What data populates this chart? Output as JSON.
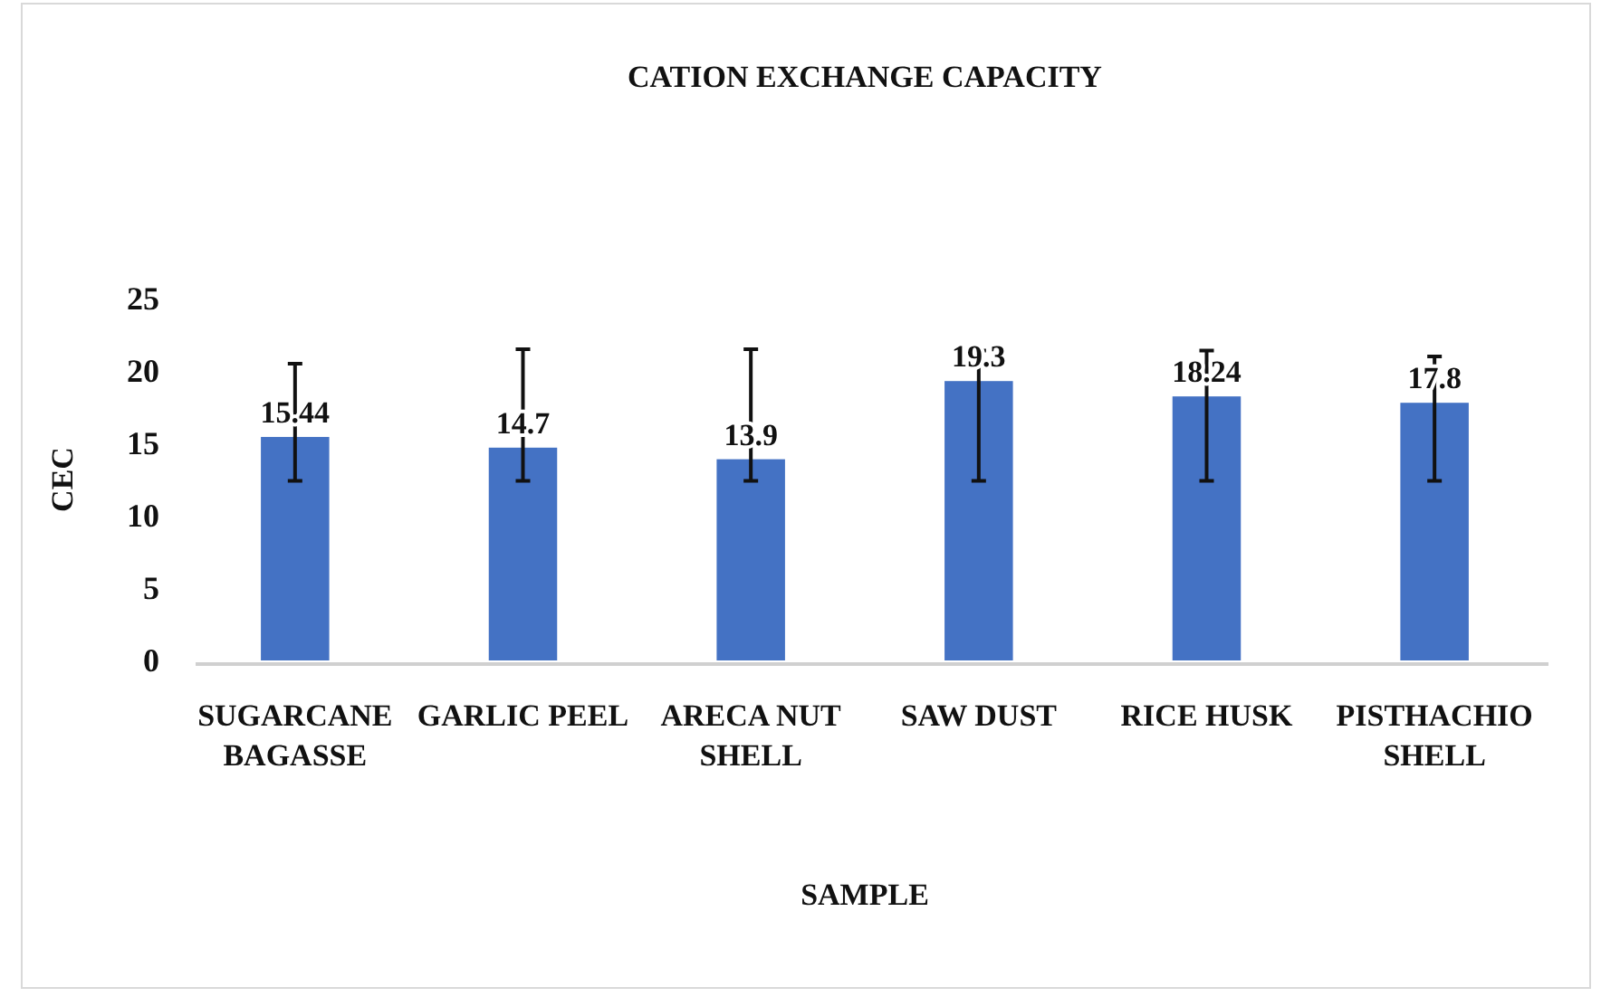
{
  "chart_data": {
    "type": "bar",
    "title": "CATION EXCHANGE CAPACITY",
    "xlabel": "SAMPLE",
    "ylabel": "CEC",
    "categories": [
      "SUGARCANE BAGASSE",
      "GARLIC PEEL",
      "ARECA NUT SHELL",
      "SAW DUST",
      "RICE HUSK",
      "PISTHACHIO SHELL"
    ],
    "values": [
      15.44,
      14.7,
      13.9,
      19.3,
      18.24,
      17.8
    ],
    "errors": [
      [
        12.4,
        20.5
      ],
      [
        12.4,
        21.5
      ],
      [
        12.4,
        21.5
      ],
      [
        12.4,
        21.4
      ],
      [
        12.4,
        21.4
      ],
      [
        12.4,
        21
      ]
    ],
    "color": "#4472c4",
    "ylim": [
      0,
      25
    ],
    "yticks": [
      0,
      5,
      10,
      15,
      20,
      25
    ],
    "grid": false,
    "data_labels": true
  }
}
